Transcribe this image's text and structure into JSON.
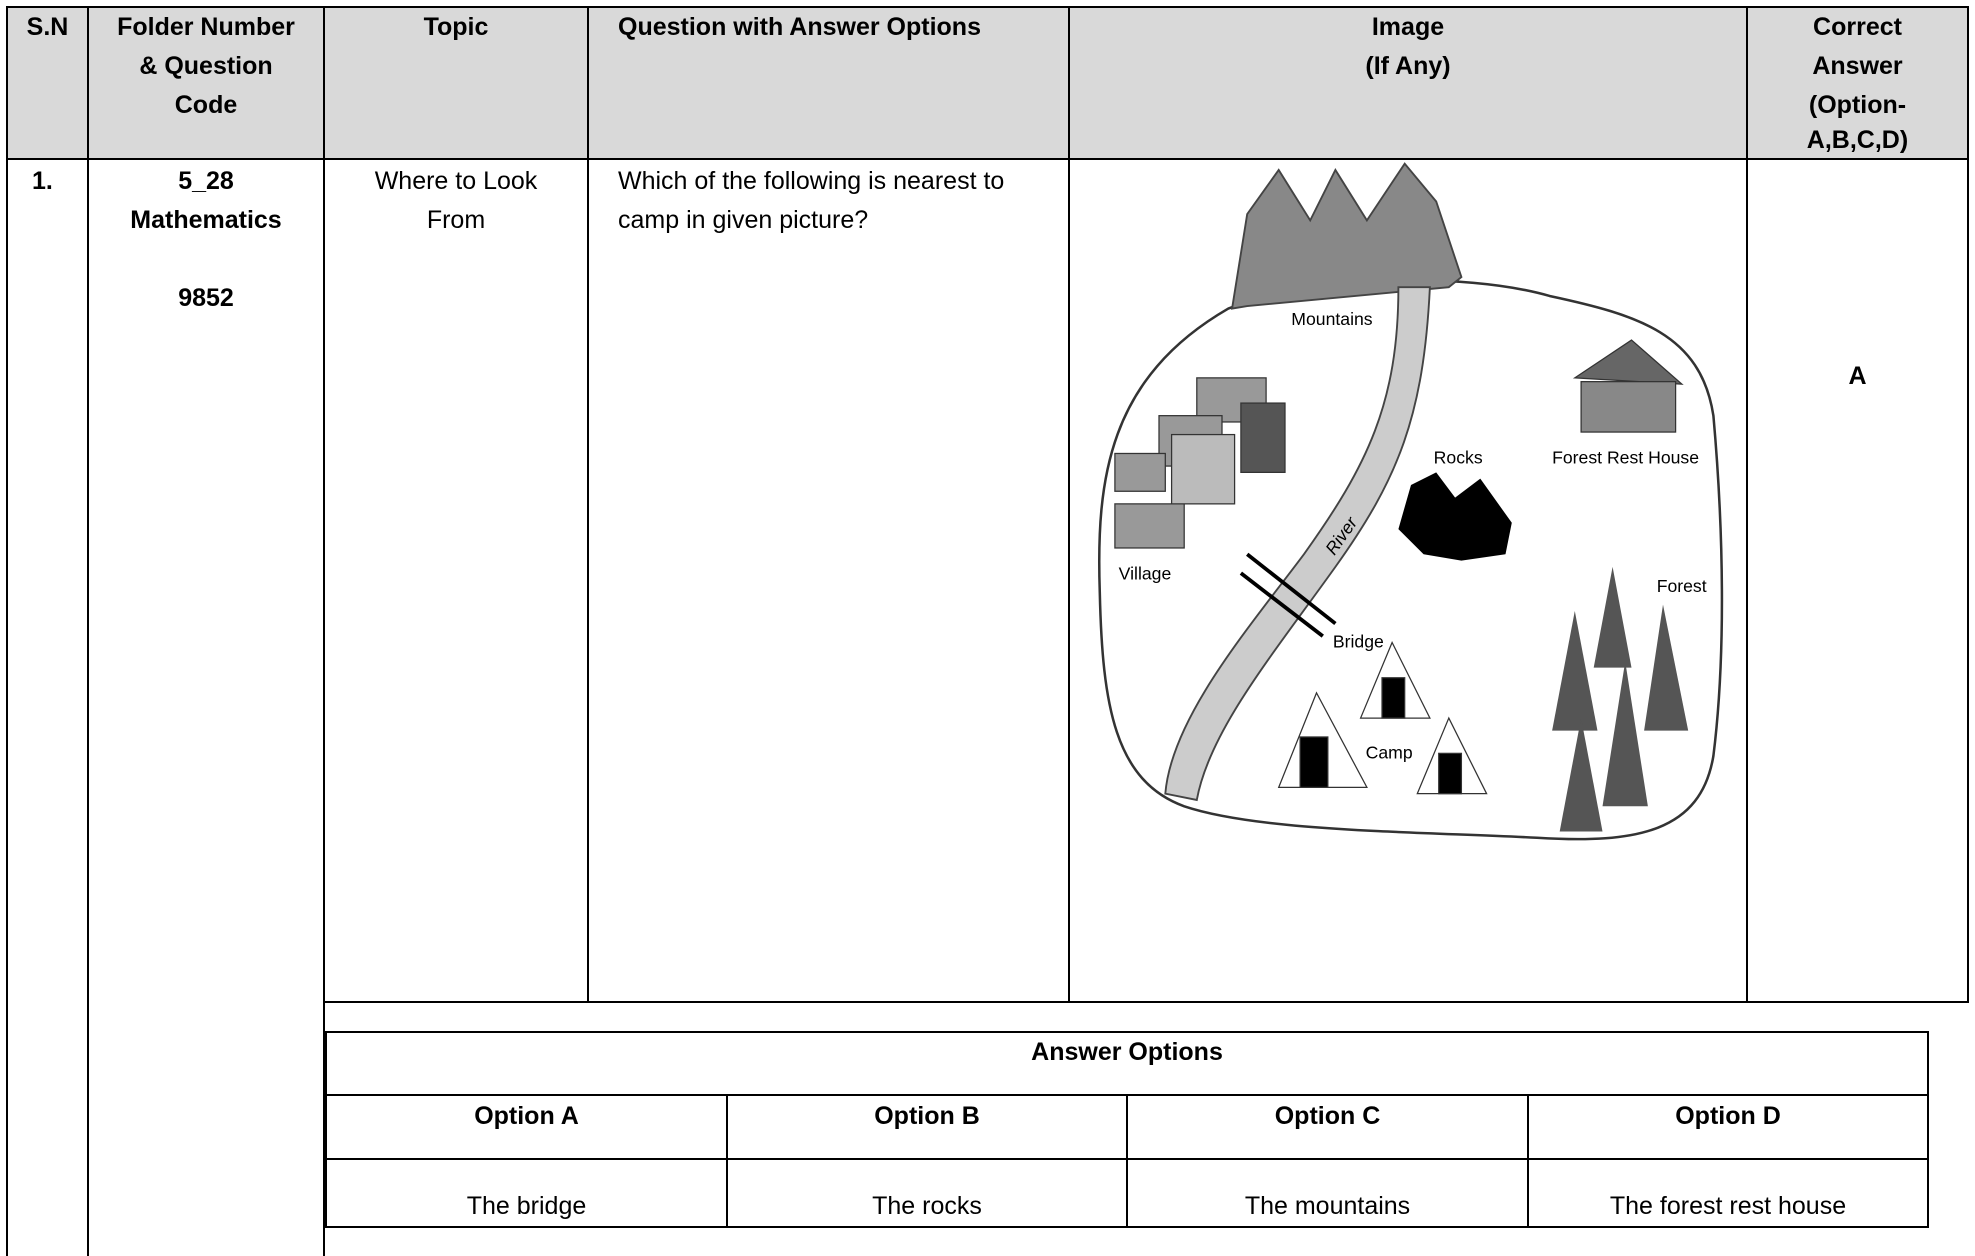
{
  "header": {
    "sn": "S.N",
    "folder": [
      "Folder Number",
      "& Question",
      "Code"
    ],
    "topic": "Topic",
    "question": "Question with Answer Options",
    "image": [
      "Image",
      "(If Any)"
    ],
    "correct": [
      "Correct",
      "Answer",
      "(Option-",
      "A,B,C,D)"
    ]
  },
  "row": {
    "sn": "1.",
    "folder_number": "5_28",
    "subject": "Mathematics",
    "code": "9852",
    "topic": [
      "Where to Look",
      "From"
    ],
    "question": "Which of the following is nearest to camp in given picture?",
    "correct_answer": "A"
  },
  "image_labels": {
    "mountains": "Mountains",
    "village": "Village",
    "rocks": "Rocks",
    "forest_rest_house": "Forest Rest House",
    "river": "River",
    "bridge": "Bridge",
    "forest": "Forest",
    "camp": "Camp"
  },
  "answer_options": {
    "title": "Answer Options",
    "headers": [
      "Option A",
      "Option B",
      "Option C",
      "Option D"
    ],
    "values": [
      "The bridge",
      "The rocks",
      "The mountains",
      "The forest rest house"
    ]
  }
}
